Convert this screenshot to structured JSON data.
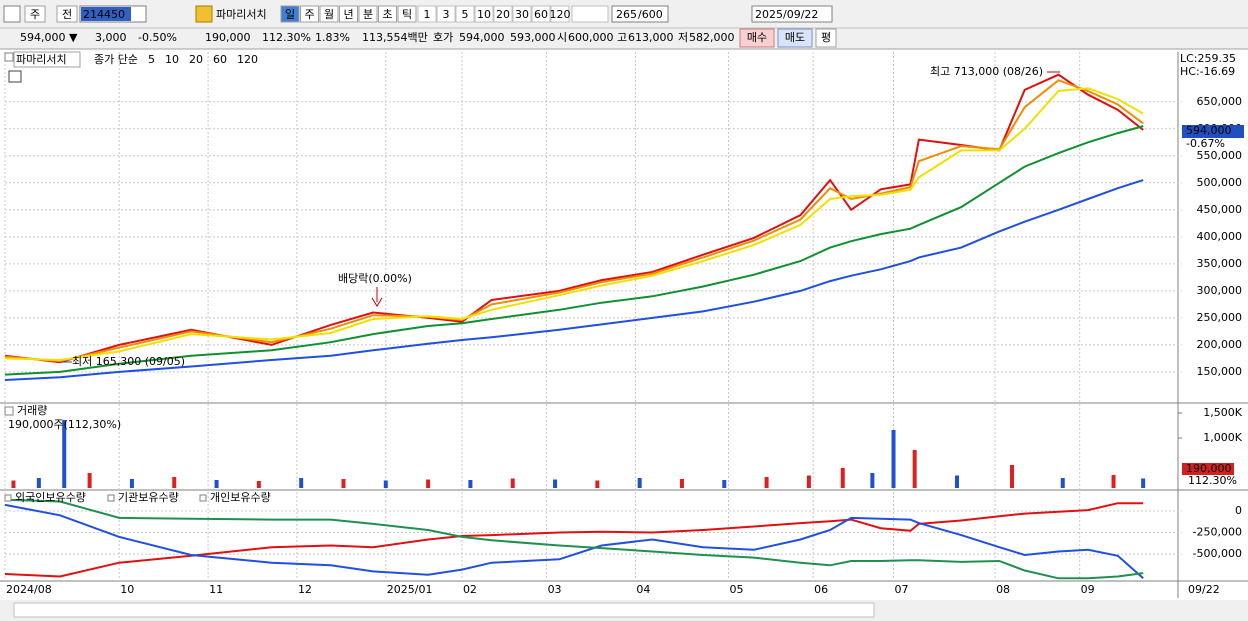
{
  "toolbar": {
    "period_type": "주",
    "prefix": "전",
    "code": "214450",
    "name": "파마리서치",
    "periods": [
      "일",
      "주",
      "월",
      "년",
      "분",
      "초",
      "틱"
    ],
    "intervals": [
      "1",
      "3",
      "5",
      "10",
      "20",
      "30",
      "60",
      "120"
    ],
    "count": "265",
    "max": "/600",
    "date": "2025/09/22"
  },
  "quote": {
    "price": "594,000 ▼",
    "change": "3,000",
    "change_rate": "-0.50%",
    "volume": "190,000",
    "volume_rate": "112.30%",
    "turnover": "1.83%",
    "amount": "113,554백만",
    "bid_label": "호가",
    "ask": "594,000",
    "bid": "593,000",
    "open_label": "시",
    "open": "600,000",
    "high_label": "고",
    "high": "613,000",
    "low_label": "저",
    "low": "582,000",
    "buy": "매수",
    "sell": "매도",
    "avg": "평"
  },
  "chart_data": [
    {
      "type": "line",
      "title": "파마리서치",
      "legend_label": "종가 단순",
      "x": [
        0,
        13,
        27,
        44,
        63,
        77,
        87,
        100,
        108,
        115,
        131,
        141,
        153,
        165,
        177,
        188,
        195,
        200,
        207,
        214,
        216,
        226,
        235,
        241,
        249,
        256,
        263,
        269
      ],
      "xlim": [
        0,
        277
      ],
      "xticks": [
        {
          "value": 0,
          "label": "2024/08"
        },
        {
          "value": 27,
          "label": "10"
        },
        {
          "value": 48,
          "label": "11"
        },
        {
          "value": 69,
          "label": "12"
        },
        {
          "value": 90,
          "label": "2025/01"
        },
        {
          "value": 108,
          "label": "02"
        },
        {
          "value": 128,
          "label": "03"
        },
        {
          "value": 149,
          "label": "04"
        },
        {
          "value": 171,
          "label": "05"
        },
        {
          "value": 191,
          "label": "06"
        },
        {
          "value": 210,
          "label": "07"
        },
        {
          "value": 234,
          "label": "08"
        },
        {
          "value": 254,
          "label": "09"
        }
      ],
      "x_end_label": "09/22",
      "ylim": [
        98000,
        731000
      ],
      "yticks": [
        {
          "value": 150000,
          "label": "150,000"
        },
        {
          "value": 200000,
          "label": "200,000"
        },
        {
          "value": 250000,
          "label": "250,000"
        },
        {
          "value": 300000,
          "label": "300,000"
        },
        {
          "value": 350000,
          "label": "350,000"
        },
        {
          "value": 400000,
          "label": "400,000"
        },
        {
          "value": 450000,
          "label": "450,000"
        },
        {
          "value": 500000,
          "label": "500,000"
        },
        {
          "value": 550000,
          "label": "550,000"
        },
        {
          "value": 600000,
          "label": "600,000"
        },
        {
          "value": 650000,
          "label": "650,000"
        }
      ],
      "grid": true,
      "series": [
        {
          "name": "5",
          "color": "#e01010",
          "values": [
            180000,
            168000,
            200000,
            228000,
            200000,
            237000,
            260000,
            250000,
            243000,
            283000,
            300000,
            320000,
            335000,
            367000,
            398000,
            440000,
            505000,
            450000,
            488000,
            497000,
            580000,
            570000,
            560000,
            672000,
            700000,
            663000,
            635000,
            598000
          ]
        },
        {
          "name": "10",
          "color": "#f08c00",
          "values": [
            178000,
            170000,
            195000,
            225000,
            205000,
            230000,
            255000,
            252000,
            246000,
            275000,
            297000,
            316000,
            332000,
            362000,
            393000,
            432000,
            490000,
            470000,
            480000,
            492000,
            540000,
            568000,
            562000,
            640000,
            690000,
            670000,
            645000,
            610000
          ]
        },
        {
          "name": "20",
          "color": "#f0e000",
          "values": [
            175000,
            172000,
            188000,
            220000,
            210000,
            222000,
            248000,
            253000,
            248000,
            265000,
            292000,
            310000,
            328000,
            355000,
            385000,
            422000,
            470000,
            475000,
            478000,
            487000,
            510000,
            560000,
            560000,
            600000,
            670000,
            675000,
            655000,
            628000
          ]
        },
        {
          "name": "60",
          "color": "#109030",
          "values": [
            145000,
            150000,
            165000,
            180000,
            190000,
            205000,
            220000,
            235000,
            240000,
            248000,
            265000,
            278000,
            290000,
            308000,
            330000,
            355000,
            380000,
            392000,
            405000,
            415000,
            422000,
            455000,
            500000,
            530000,
            555000,
            575000,
            592000,
            605000
          ]
        },
        {
          "name": "120",
          "color": "#2050e0",
          "values": [
            135000,
            140000,
            150000,
            160000,
            172000,
            180000,
            190000,
            202000,
            209000,
            214000,
            228000,
            238000,
            250000,
            262000,
            280000,
            300000,
            318000,
            328000,
            340000,
            355000,
            362000,
            380000,
            410000,
            428000,
            450000,
            470000,
            490000,
            505000
          ]
        }
      ],
      "annotations": [
        "최고 713,000 (08/26)",
        "최저 165,300 (09/05)",
        "배당락(0.00%)"
      ],
      "lc_label": "LC:259.35",
      "hc_label": "HC:-16.69",
      "current_label": "594,000",
      "current_rate": "-0.67%"
    },
    {
      "type": "bar",
      "title": "거래량",
      "annotation": "190,000주(112,30%)",
      "x": [
        2,
        8,
        14,
        20,
        30,
        40,
        50,
        60,
        70,
        80,
        90,
        100,
        110,
        120,
        130,
        140,
        150,
        160,
        170,
        180,
        190,
        198,
        205,
        210,
        215,
        225,
        238,
        250,
        262,
        269
      ],
      "xlim": [
        0,
        277
      ],
      "values": [
        150000,
        200000,
        1360000,
        300000,
        180000,
        220000,
        160000,
        140000,
        200000,
        180000,
        150000,
        170000,
        160000,
        190000,
        170000,
        150000,
        200000,
        180000,
        160000,
        220000,
        250000,
        400000,
        300000,
        1160000,
        760000,
        250000,
        460000,
        200000,
        260000,
        190000
      ],
      "bar_colors": [
        "#e02020",
        "#2050d0",
        "#2050d0",
        "#e02020",
        "#2050d0",
        "#e02020",
        "#2050d0",
        "#e02020",
        "#2050d0",
        "#e02020",
        "#2050d0",
        "#e02020",
        "#2050d0",
        "#e02020",
        "#2050d0",
        "#e02020",
        "#2050d0",
        "#e02020",
        "#2050d0",
        "#e02020",
        "#e02020",
        "#e02020",
        "#2050d0",
        "#2050d0",
        "#e02020",
        "#2050d0",
        "#e02020",
        "#2050d0",
        "#e02020",
        "#2050d0"
      ],
      "ylim": [
        0,
        1640000
      ],
      "yticks": [
        {
          "value": 1000000,
          "label": "1,000K"
        },
        {
          "value": 1500000,
          "label": "1,500K"
        }
      ],
      "current_label": "190,000",
      "current_rate": "112.30%"
    },
    {
      "type": "line",
      "x": [
        0,
        13,
        27,
        44,
        63,
        77,
        87,
        100,
        108,
        115,
        131,
        141,
        153,
        165,
        177,
        188,
        195,
        200,
        207,
        214,
        216,
        226,
        235,
        241,
        249,
        256,
        263,
        269
      ],
      "xlim": [
        0,
        277
      ],
      "ylim": [
        -800000,
        220000
      ],
      "yticks": [
        0,
        {
          "value": -250000,
          "label": "-250,000"
        },
        {
          "value": -500000,
          "label": "-500,000"
        }
      ],
      "grid": true,
      "series": [
        {
          "name": "외국인보유수량",
          "color": "#e01010",
          "values": [
            -730000,
            -760000,
            -600000,
            -520000,
            -420000,
            -400000,
            -420000,
            -330000,
            -290000,
            -280000,
            -250000,
            -240000,
            -250000,
            -220000,
            -180000,
            -140000,
            -120000,
            -100000,
            -200000,
            -230000,
            -150000,
            -110000,
            -60000,
            -30000,
            -10000,
            10000,
            90000,
            90000
          ]
        },
        {
          "name": "기관보유수량",
          "color": "#2050e0",
          "values": [
            70000,
            -50000,
            -300000,
            -510000,
            -600000,
            -630000,
            -700000,
            -740000,
            -680000,
            -600000,
            -560000,
            -400000,
            -330000,
            -420000,
            -450000,
            -330000,
            -220000,
            -80000,
            -90000,
            -100000,
            -140000,
            -280000,
            -420000,
            -510000,
            -470000,
            -450000,
            -520000,
            -780000
          ]
        },
        {
          "name": "개인보유수량",
          "color": "#209050",
          "values": [
            130000,
            110000,
            -80000,
            -90000,
            -100000,
            -100000,
            -150000,
            -220000,
            -300000,
            -340000,
            -400000,
            -430000,
            -470000,
            -510000,
            -540000,
            -600000,
            -630000,
            -580000,
            -580000,
            -570000,
            -570000,
            -590000,
            -580000,
            -690000,
            -780000,
            -780000,
            -760000,
            -720000
          ]
        }
      ]
    }
  ]
}
